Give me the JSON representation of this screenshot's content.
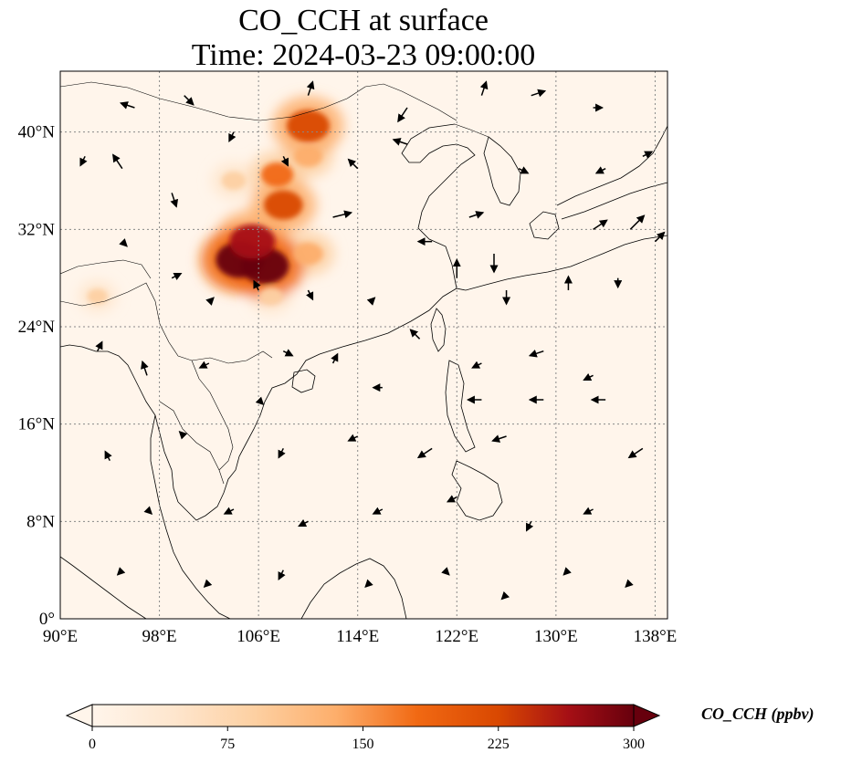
{
  "title": "CO_CCH at surface",
  "subtitle": "Time: 2024-03-23 09:00:00",
  "map": {
    "lon_range": [
      90,
      139
    ],
    "lat_range": [
      0,
      45
    ],
    "lon_ticks": [
      "90°E",
      "98°E",
      "106°E",
      "114°E",
      "122°E",
      "130°E",
      "138°E"
    ],
    "lat_ticks": [
      "0°",
      "8°N",
      "16°N",
      "24°N",
      "32°N",
      "40°N"
    ],
    "gridlines": true,
    "background_color": "#fff5eb"
  },
  "hotspots": [
    {
      "lon": 104.5,
      "lat": 29.5,
      "value": 300
    },
    {
      "lon": 106.5,
      "lat": 29.0,
      "value": 300
    },
    {
      "lon": 105.5,
      "lat": 31.0,
      "value": 280
    },
    {
      "lon": 108.0,
      "lat": 34.0,
      "value": 230
    },
    {
      "lon": 107.5,
      "lat": 36.5,
      "value": 180
    },
    {
      "lon": 110.0,
      "lat": 40.5,
      "value": 260
    },
    {
      "lon": 104.0,
      "lat": 36.0,
      "value": 120
    },
    {
      "lon": 110.0,
      "lat": 38.0,
      "value": 150
    },
    {
      "lon": 93.0,
      "lat": 26.5,
      "value": 90
    },
    {
      "lon": 110.0,
      "lat": 30.0,
      "value": 160
    },
    {
      "lon": 107.0,
      "lat": 26.5,
      "value": 110
    }
  ],
  "wind_vectors": [
    {
      "lon": 96,
      "lat": 42,
      "u": -3,
      "v": 1
    },
    {
      "lon": 100,
      "lat": 43,
      "u": 2,
      "v": -2
    },
    {
      "lon": 110,
      "lat": 43,
      "u": 1,
      "v": 3
    },
    {
      "lon": 118,
      "lat": 42,
      "u": -2,
      "v": -3
    },
    {
      "lon": 124,
      "lat": 43,
      "u": 1,
      "v": 3
    },
    {
      "lon": 128,
      "lat": 43,
      "u": 3,
      "v": 1
    },
    {
      "lon": 133,
      "lat": 42,
      "u": 2,
      "v": 0
    },
    {
      "lon": 92,
      "lat": 38,
      "u": -1,
      "v": -2
    },
    {
      "lon": 95,
      "lat": 37,
      "u": -2,
      "v": 3
    },
    {
      "lon": 99,
      "lat": 35,
      "u": 1,
      "v": -3
    },
    {
      "lon": 114,
      "lat": 37,
      "u": -2,
      "v": 2
    },
    {
      "lon": 118,
      "lat": 39,
      "u": -3,
      "v": 1
    },
    {
      "lon": 127,
      "lat": 37,
      "u": 2,
      "v": -1
    },
    {
      "lon": 134,
      "lat": 37,
      "u": -2,
      "v": -1
    },
    {
      "lon": 137,
      "lat": 38,
      "u": 2,
      "v": 1
    },
    {
      "lon": 112,
      "lat": 33,
      "u": 4,
      "v": 1
    },
    {
      "lon": 120,
      "lat": 31,
      "u": -3,
      "v": 0
    },
    {
      "lon": 123,
      "lat": 33,
      "u": 3,
      "v": 1
    },
    {
      "lon": 125,
      "lat": 30,
      "u": 0,
      "v": -4
    },
    {
      "lon": 133,
      "lat": 32,
      "u": 3,
      "v": 2
    },
    {
      "lon": 136,
      "lat": 32,
      "u": 3,
      "v": 3
    },
    {
      "lon": 138,
      "lat": 31,
      "u": 2,
      "v": 2
    },
    {
      "lon": 122,
      "lat": 28,
      "u": 0,
      "v": 4
    },
    {
      "lon": 126,
      "lat": 27,
      "u": 0,
      "v": -3
    },
    {
      "lon": 131,
      "lat": 27,
      "u": 0,
      "v": 3
    },
    {
      "lon": 135,
      "lat": 28,
      "u": 0,
      "v": -2
    },
    {
      "lon": 93,
      "lat": 22,
      "u": 1,
      "v": 2
    },
    {
      "lon": 97,
      "lat": 20,
      "u": -1,
      "v": 3
    },
    {
      "lon": 102,
      "lat": 21,
      "u": -2,
      "v": -1
    },
    {
      "lon": 108,
      "lat": 22,
      "u": 2,
      "v": -1
    },
    {
      "lon": 112,
      "lat": 21,
      "u": 1,
      "v": 2
    },
    {
      "lon": 119,
      "lat": 23,
      "u": -2,
      "v": 2
    },
    {
      "lon": 124,
      "lat": 21,
      "u": -2,
      "v": -1
    },
    {
      "lon": 129,
      "lat": 22,
      "u": -3,
      "v": -1
    },
    {
      "lon": 133,
      "lat": 20,
      "u": -2,
      "v": -1
    },
    {
      "lon": 124,
      "lat": 18,
      "u": -3,
      "v": 0
    },
    {
      "lon": 129,
      "lat": 18,
      "u": -3,
      "v": 0
    },
    {
      "lon": 134,
      "lat": 18,
      "u": -3,
      "v": 0
    },
    {
      "lon": 137,
      "lat": 14,
      "u": -3,
      "v": -2
    },
    {
      "lon": 120,
      "lat": 14,
      "u": -3,
      "v": -2
    },
    {
      "lon": 126,
      "lat": 15,
      "u": -3,
      "v": -1
    },
    {
      "lon": 114,
      "lat": 15,
      "u": -2,
      "v": -1
    },
    {
      "lon": 108,
      "lat": 14,
      "u": -1,
      "v": -2
    },
    {
      "lon": 100,
      "lat": 15,
      "u": -1,
      "v": 1
    },
    {
      "lon": 94,
      "lat": 13,
      "u": -1,
      "v": 2
    },
    {
      "lon": 97,
      "lat": 9,
      "u": 1,
      "v": -1
    },
    {
      "lon": 104,
      "lat": 9,
      "u": -2,
      "v": -1
    },
    {
      "lon": 110,
      "lat": 8,
      "u": -2,
      "v": -1
    },
    {
      "lon": 116,
      "lat": 9,
      "u": -2,
      "v": -1
    },
    {
      "lon": 122,
      "lat": 10,
      "u": -2,
      "v": -1
    },
    {
      "lon": 128,
      "lat": 8,
      "u": -1,
      "v": -2
    },
    {
      "lon": 133,
      "lat": 9,
      "u": -2,
      "v": -1
    },
    {
      "lon": 95,
      "lat": 4,
      "u": -1,
      "v": -1
    },
    {
      "lon": 102,
      "lat": 3,
      "u": -1,
      "v": -1
    },
    {
      "lon": 108,
      "lat": 4,
      "u": -1,
      "v": -2
    },
    {
      "lon": 115,
      "lat": 3,
      "u": -1,
      "v": -1
    },
    {
      "lon": 121,
      "lat": 4,
      "u": 1,
      "v": -1
    },
    {
      "lon": 126,
      "lat": 2,
      "u": -1,
      "v": -1
    },
    {
      "lon": 131,
      "lat": 4,
      "u": -1,
      "v": -1
    },
    {
      "lon": 136,
      "lat": 3,
      "u": -1,
      "v": -1
    },
    {
      "lon": 104,
      "lat": 40,
      "u": -1,
      "v": -2
    },
    {
      "lon": 108,
      "lat": 38,
      "u": 1,
      "v": -2
    },
    {
      "lon": 102,
      "lat": 26,
      "u": 1,
      "v": 1
    },
    {
      "lon": 106,
      "lat": 27,
      "u": -1,
      "v": 2
    },
    {
      "lon": 110,
      "lat": 27,
      "u": 1,
      "v": -2
    },
    {
      "lon": 115,
      "lat": 26,
      "u": 1,
      "v": 1
    },
    {
      "lon": 116,
      "lat": 19,
      "u": -2,
      "v": 0
    },
    {
      "lon": 106,
      "lat": 18,
      "u": 1,
      "v": -1
    },
    {
      "lon": 99,
      "lat": 28,
      "u": 2,
      "v": 1
    },
    {
      "lon": 95,
      "lat": 31,
      "u": 1,
      "v": -1
    }
  ],
  "colorbar": {
    "label": "CO_CCH (ppbv)",
    "ticks": [
      "0",
      "75",
      "150",
      "225",
      "300"
    ],
    "min": 0,
    "max": 300,
    "colormap": "OrRd",
    "extend": "both"
  }
}
